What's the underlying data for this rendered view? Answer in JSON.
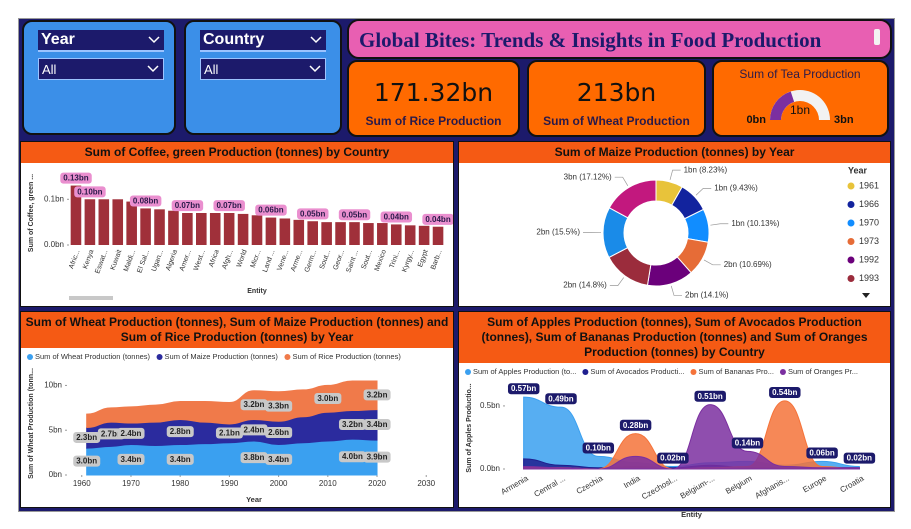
{
  "slicers": [
    {
      "label": "Year",
      "value": "All"
    },
    {
      "label": "Country",
      "value": "All"
    }
  ],
  "header": {
    "title": "Global Bites: Trends & Insights in Food Production"
  },
  "cards": [
    {
      "value": "171.32bn",
      "label": "Sum of Rice Production"
    },
    {
      "value": "213bn",
      "label": "Sum of Wheat Production"
    }
  ],
  "gauge": {
    "title": "Sum of Tea Production",
    "value": 1.2,
    "value_label": "1bn",
    "min": 0,
    "min_label": "0bn",
    "max": 3,
    "max_label": "3bn",
    "color": "#7b2fa0"
  },
  "chart_data": [
    {
      "type": "bar",
      "title": "Sum of Coffee, green Production (tonnes) by Country",
      "y_label": "Sum of Coffee, green ...",
      "x_label": "Entity",
      "categories": [
        "Afric...",
        "Kenya",
        "Eswat...",
        "Kuwait",
        "Maldi...",
        "El Sal...",
        "Ugan...",
        "Algeria",
        "Amer...",
        "West...",
        "Africa",
        "Afgh...",
        "World",
        "Micr...",
        "Land ...",
        "Vene...",
        "Arme...",
        "Germ...",
        "Sout...",
        "Geor...",
        "Saint ...",
        "Sout...",
        "Mexico",
        "Trini...",
        "Kyrgy...",
        "Egypt",
        "Barb..."
      ],
      "values": [
        0.13,
        0.1,
        0.1,
        0.1,
        0.095,
        0.08,
        0.078,
        0.075,
        0.07,
        0.07,
        0.07,
        0.07,
        0.068,
        0.065,
        0.06,
        0.058,
        0.055,
        0.052,
        0.05,
        0.05,
        0.05,
        0.048,
        0.048,
        0.045,
        0.043,
        0.042,
        0.04
      ],
      "value_labels": [
        "0.13bn",
        "0.10bn",
        null,
        null,
        null,
        "0.08bn",
        null,
        null,
        "0.07bn",
        null,
        null,
        "0.07bn",
        null,
        null,
        "0.06bn",
        null,
        null,
        "0.05bn",
        null,
        null,
        "0.05bn",
        null,
        null,
        "0.04bn",
        null,
        null,
        "0.04bn"
      ],
      "color": "#a0303a",
      "ylim": [
        0,
        0.14
      ],
      "yticks": [
        {
          "value": 0,
          "label": "0.0bn"
        },
        {
          "value": 0.1,
          "label": "0.1bn"
        }
      ]
    },
    {
      "type": "pie",
      "title": "Sum of Maize Production (tonnes) by Year",
      "legend_title": "Year",
      "categories": [
        "1961",
        "1966",
        "1970",
        "1973",
        "1992",
        "1993",
        null,
        null
      ],
      "values": [
        8.23,
        9.43,
        10.13,
        10.69,
        14.1,
        14.8,
        15.5,
        17.12
      ],
      "value_labels": [
        "1bn (8.23%)",
        "1bn (9.43%)",
        "1bn (10.13%)",
        "2bn (10.69%)",
        "2bn (14.1%)",
        "2bn (14.8%)",
        "2bn (15.5%)",
        "3bn (17.12%)"
      ],
      "colors": [
        "#e8c33a",
        "#12239e",
        "#118dff",
        "#e66c37",
        "#6b007b",
        "#9b2c3c",
        "#1a8be8",
        "#c2187e"
      ]
    },
    {
      "type": "area",
      "stacked": true,
      "title": "Sum of Wheat Production (tonnes), Sum of Maize Production (tonnes) and Sum of Rice Production (tonnes) by Year",
      "y_label": "Sum of Wheat Production (tonn...",
      "x_label": "Year",
      "x": [
        1961,
        1966,
        1970,
        1975,
        1980,
        1985,
        1990,
        1995,
        2000,
        2005,
        2010,
        2015,
        2020
      ],
      "series": [
        {
          "name": "Sum of Wheat Production (tonnes)",
          "color": "#3aa0f0",
          "values": [
            3.0,
            3.2,
            3.4,
            3.3,
            3.4,
            3.5,
            3.6,
            3.8,
            3.4,
            3.6,
            3.8,
            4.0,
            3.9
          ],
          "value_labels": [
            "3.0bn",
            null,
            "3.4bn",
            null,
            "3.4bn",
            null,
            null,
            "3.8bn",
            "3.4bn",
            null,
            null,
            "4.0bn",
            "3.9bn"
          ]
        },
        {
          "name": "Sum of Maize Production (tonnes)",
          "color": "#2b2b9e",
          "values": [
            2.3,
            2.7,
            2.4,
            2.6,
            2.8,
            2.4,
            2.1,
            2.4,
            2.6,
            2.9,
            3.2,
            3.2,
            3.4
          ],
          "value_labels": [
            "2.3bn",
            "2.7bn",
            "2.4bn",
            null,
            "2.8bn",
            null,
            "2.1bn",
            "2.4bn",
            "2.6bn",
            null,
            null,
            "3.2bn",
            "3.4bn"
          ]
        },
        {
          "name": "Sum of Rice Production (tonnes)",
          "color": "#f07a4a",
          "values": [
            1.5,
            1.6,
            1.8,
            1.9,
            2.0,
            2.3,
            2.4,
            3.2,
            3.3,
            3.0,
            3.0,
            3.3,
            3.2
          ],
          "value_labels": [
            null,
            null,
            null,
            null,
            null,
            null,
            null,
            "3.2bn",
            "3.3bn",
            null,
            "3.0bn",
            null,
            "3.2bn"
          ]
        }
      ],
      "xlim": [
        1957,
        2033
      ],
      "xticks": [
        1960,
        1970,
        1980,
        1990,
        2000,
        2010,
        2020,
        2030
      ],
      "ylim": [
        0,
        11.5
      ],
      "yticks": [
        {
          "value": 0,
          "label": "0bn"
        },
        {
          "value": 5,
          "label": "5bn"
        },
        {
          "value": 10,
          "label": "10bn"
        }
      ]
    },
    {
      "type": "area",
      "stacked": false,
      "title": "Sum of Apples Production (tonnes), Sum of Avocados Production (tonnes), Sum of Bananas Production (tonnes) and Sum of Oranges Production (tonnes) by Country",
      "y_label": "Sum of Apples Productio...",
      "x_label": "Entity",
      "categories": [
        "Armenia",
        "Central ...",
        "Czechia",
        "India",
        "Czechosl...",
        "Belgium-...",
        "Belgium",
        "Afghanis...",
        "Europe",
        "Croatia"
      ],
      "series": [
        {
          "name": "Sum of Apples Production (to...",
          "color": "#3aa0f0",
          "values": [
            0.57,
            0.49,
            0.1,
            0.05,
            0.02,
            0.05,
            0.06,
            0.03,
            0.06,
            0.02
          ],
          "value_labels": [
            "0.57bn",
            "0.49bn",
            "0.10bn",
            null,
            "0.02bn",
            null,
            null,
            null,
            "0.06bn",
            "0.02bn"
          ]
        },
        {
          "name": "Sum of Avocados Producti...",
          "color": "#1f1f8f",
          "values": [
            0.08,
            0.03,
            0.01,
            0.02,
            0.01,
            0.03,
            0.01,
            0.01,
            0.01,
            0.01
          ]
        },
        {
          "name": "Sum of Bananas Pro...",
          "color": "#f5733a",
          "values": [
            0.01,
            0.01,
            0.0,
            0.28,
            0.0,
            0.01,
            0.02,
            0.54,
            0.02,
            0.0
          ],
          "value_labels": [
            null,
            null,
            null,
            "0.28bn",
            null,
            null,
            null,
            "0.54bn",
            null,
            null
          ]
        },
        {
          "name": "Sum of Oranges Pr...",
          "color": "#7b2fa0",
          "values": [
            0.02,
            0.01,
            0.0,
            0.1,
            0.0,
            0.51,
            0.14,
            0.02,
            0.01,
            0.01
          ],
          "value_labels": [
            null,
            null,
            null,
            null,
            null,
            "0.51bn",
            "0.14bn",
            null,
            null,
            null
          ]
        }
      ],
      "ylim": [
        0,
        0.65
      ],
      "yticks": [
        {
          "value": 0,
          "label": "0.0bn"
        },
        {
          "value": 0.5,
          "label": "0.5bn"
        }
      ]
    }
  ]
}
